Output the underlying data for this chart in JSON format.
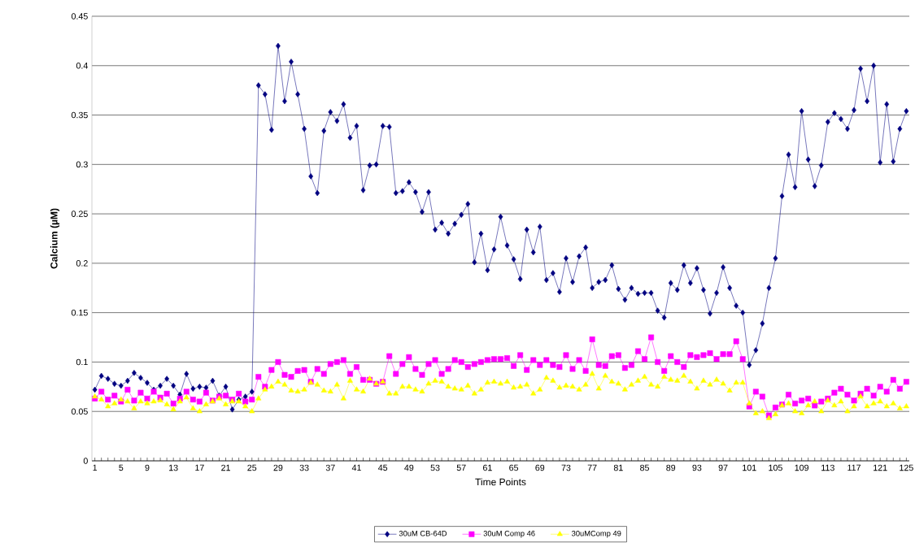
{
  "chart_data": {
    "type": "line",
    "xlabel": "Time Points",
    "ylabel": "Calcium (µM)",
    "categories": [
      "1",
      null,
      null,
      null,
      "5",
      null,
      null,
      null,
      "9",
      null,
      null,
      null,
      "13",
      null,
      null,
      null,
      "17",
      null,
      null,
      null,
      "21",
      null,
      null,
      null,
      "25",
      null,
      null,
      null,
      "29",
      null,
      null,
      null,
      "33",
      null,
      null,
      null,
      "37",
      null,
      null,
      null,
      "41",
      null,
      null,
      null,
      "45",
      null,
      null,
      null,
      "49",
      null,
      null,
      null,
      "53",
      null,
      null,
      null,
      "57",
      null,
      null,
      null,
      "61",
      null,
      null,
      null,
      "65",
      null,
      null,
      null,
      "69",
      null,
      null,
      null,
      "73",
      null,
      null,
      null,
      "77",
      null,
      null,
      null,
      "81",
      null,
      null,
      null,
      "85",
      null,
      null,
      null,
      "89",
      null,
      null,
      null,
      "93",
      null,
      null,
      null,
      "97",
      null,
      null,
      null,
      "101",
      null,
      null,
      null,
      "105",
      null,
      null,
      null,
      "109",
      null,
      null,
      null,
      "113",
      null,
      null,
      null,
      "117",
      null,
      null,
      null,
      "121",
      null,
      null,
      null,
      "125"
    ],
    "ylim": [
      0,
      0.45
    ],
    "yticks": [
      0,
      0.05,
      0.1,
      0.15,
      0.2,
      0.25,
      0.3,
      0.35,
      0.4,
      0.45
    ],
    "grid": "y",
    "legend": "bottom",
    "line_style": "solid",
    "series": [
      {
        "name": "30uM CB-64D",
        "color": "#000080",
        "marker": "diamond",
        "values": [
          0.072,
          0.086,
          0.083,
          0.078,
          0.076,
          0.081,
          0.089,
          0.084,
          0.079,
          0.072,
          0.076,
          0.083,
          0.076,
          0.067,
          0.088,
          0.073,
          0.075,
          0.074,
          0.081,
          0.066,
          0.075,
          0.052,
          0.062,
          0.065,
          0.07,
          0.38,
          0.371,
          0.335,
          0.42,
          0.364,
          0.404,
          0.371,
          0.336,
          0.288,
          0.271,
          0.334,
          0.353,
          0.344,
          0.361,
          0.327,
          0.339,
          0.274,
          0.299,
          0.3,
          0.339,
          0.338,
          0.271,
          0.273,
          0.282,
          0.272,
          0.252,
          0.272,
          0.234,
          0.241,
          0.23,
          0.24,
          0.249,
          0.26,
          0.201,
          0.23,
          0.193,
          0.214,
          0.247,
          0.218,
          0.204,
          0.184,
          0.234,
          0.211,
          0.237,
          0.183,
          0.19,
          0.171,
          0.205,
          0.181,
          0.207,
          0.216,
          0.175,
          0.181,
          0.183,
          0.198,
          0.174,
          0.163,
          0.175,
          0.169,
          0.17,
          0.17,
          0.152,
          0.145,
          0.18,
          0.173,
          0.198,
          0.18,
          0.195,
          0.173,
          0.149,
          0.17,
          0.196,
          0.175,
          0.157,
          0.15,
          0.097,
          0.112,
          0.139,
          0.175,
          0.205,
          0.268,
          0.31,
          0.277,
          0.354,
          0.305,
          0.278,
          0.299,
          0.343,
          0.352,
          0.346,
          0.336,
          0.355,
          0.397,
          0.364,
          0.4,
          0.302,
          0.361,
          0.303,
          0.336,
          0.354
        ]
      },
      {
        "name": "30uM Comp 46",
        "color": "#ff00ff",
        "marker": "square",
        "values": [
          0.063,
          0.07,
          0.062,
          0.066,
          0.06,
          0.072,
          0.061,
          0.069,
          0.063,
          0.07,
          0.064,
          0.068,
          0.058,
          0.063,
          0.07,
          0.062,
          0.06,
          0.069,
          0.061,
          0.065,
          0.066,
          0.062,
          0.068,
          0.06,
          0.062,
          0.085,
          0.075,
          0.092,
          0.1,
          0.087,
          0.085,
          0.091,
          0.092,
          0.08,
          0.093,
          0.088,
          0.098,
          0.1,
          0.102,
          0.088,
          0.095,
          0.082,
          0.082,
          0.078,
          0.08,
          0.106,
          0.088,
          0.098,
          0.105,
          0.093,
          0.087,
          0.098,
          0.102,
          0.088,
          0.093,
          0.102,
          0.1,
          0.095,
          0.098,
          0.1,
          0.102,
          0.103,
          0.103,
          0.104,
          0.096,
          0.107,
          0.092,
          0.102,
          0.097,
          0.102,
          0.097,
          0.095,
          0.107,
          0.093,
          0.102,
          0.091,
          0.123,
          0.097,
          0.096,
          0.106,
          0.107,
          0.094,
          0.097,
          0.111,
          0.103,
          0.125,
          0.1,
          0.091,
          0.106,
          0.1,
          0.095,
          0.107,
          0.105,
          0.107,
          0.109,
          0.103,
          0.108,
          0.108,
          0.121,
          0.103,
          0.055,
          0.07,
          0.065,
          0.046,
          0.054,
          0.057,
          0.067,
          0.058,
          0.061,
          0.063,
          0.056,
          0.06,
          0.063,
          0.069,
          0.073,
          0.067,
          0.061,
          0.068,
          0.073,
          0.066,
          0.075,
          0.07,
          0.082,
          0.073,
          0.08
        ]
      },
      {
        "name": "30uMComp 49",
        "color": "#ffff00",
        "marker": "triangle",
        "values": [
          0.065,
          0.062,
          0.055,
          0.058,
          0.062,
          0.06,
          0.053,
          0.06,
          0.058,
          0.06,
          0.061,
          0.057,
          0.052,
          0.06,
          0.064,
          0.053,
          0.05,
          0.057,
          0.06,
          0.063,
          0.057,
          0.06,
          0.06,
          0.055,
          0.05,
          0.063,
          0.072,
          0.075,
          0.08,
          0.077,
          0.071,
          0.07,
          0.072,
          0.079,
          0.077,
          0.071,
          0.07,
          0.077,
          0.063,
          0.081,
          0.072,
          0.07,
          0.083,
          0.078,
          0.08,
          0.068,
          0.068,
          0.075,
          0.075,
          0.072,
          0.07,
          0.078,
          0.081,
          0.08,
          0.075,
          0.073,
          0.072,
          0.076,
          0.068,
          0.072,
          0.079,
          0.08,
          0.078,
          0.08,
          0.074,
          0.075,
          0.077,
          0.068,
          0.072,
          0.084,
          0.081,
          0.074,
          0.076,
          0.075,
          0.072,
          0.077,
          0.088,
          0.073,
          0.086,
          0.08,
          0.078,
          0.072,
          0.077,
          0.081,
          0.085,
          0.077,
          0.075,
          0.085,
          0.082,
          0.081,
          0.086,
          0.08,
          0.073,
          0.081,
          0.077,
          0.082,
          0.078,
          0.071,
          0.079,
          0.079,
          0.058,
          0.048,
          0.05,
          0.043,
          0.047,
          0.056,
          0.058,
          0.05,
          0.048,
          0.056,
          0.06,
          0.05,
          0.061,
          0.056,
          0.06,
          0.05,
          0.055,
          0.065,
          0.055,
          0.058,
          0.06,
          0.055,
          0.058,
          0.053,
          0.055
        ]
      }
    ]
  }
}
